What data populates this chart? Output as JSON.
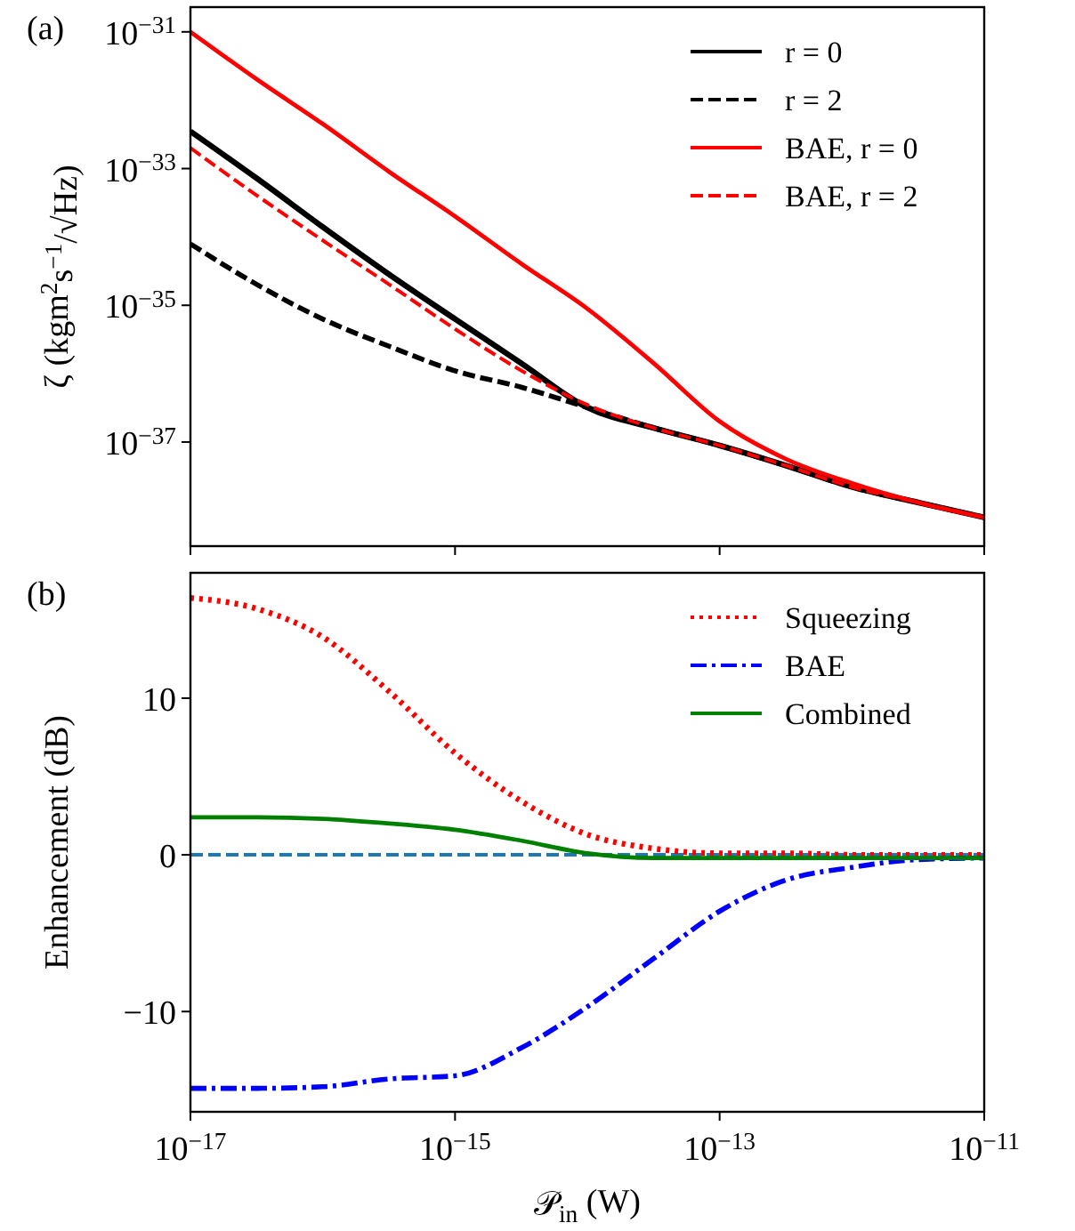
{
  "chart_data": [
    {
      "type": "line",
      "title": "(a)",
      "ylabel": "ζ (kgm$^{2}$s$^{−1}$/√Hz)",
      "log": "xy",
      "grid": false,
      "legend": "top right",
      "tick_labels": "y",
      "x": [
        1e-17,
        3.2e-17,
        1e-16,
        3.2e-16,
        1e-15,
        3.2e-15,
        1e-14,
        3.2e-14,
        1e-13,
        3.2e-13,
        1e-12,
        3.2e-12,
        1e-11
      ],
      "xlim": [
        1e-17,
        1e-11
      ],
      "xticks": [
        1e-17,
        1e-15,
        1e-13,
        1e-11
      ],
      "ylim": [
        3e-39,
        2.3e-31
      ],
      "yticks": [
        {
          "value": 1e-31,
          "label": "10$^{−31}$"
        },
        {
          "value": 1e-33,
          "label": "10$^{−33}$"
        },
        {
          "value": 1e-35,
          "label": "10$^{−35}$"
        },
        {
          "value": 1e-37,
          "label": "10$^{−37}$"
        }
      ],
      "series": [
        {
          "name": "r = 0",
          "color": "#000000",
          "line_style": "solid",
          "values": [
            3.5e-33,
            7.1e-34,
            1.4e-34,
            2.8e-35,
            6.3e-36,
            1.4e-36,
            3.2e-37,
            1.6e-37,
            8.9e-38,
            4.5e-38,
            2.2e-38,
            1.3e-38,
            7.9e-39
          ]
        },
        {
          "name": "r = 2",
          "color": "#000000",
          "line_style": "dashed",
          "values": [
            7.9e-35,
            2e-35,
            6.3e-36,
            2.5e-36,
            1.1e-36,
            6.3e-37,
            3.2e-37,
            1.6e-37,
            8.9e-38,
            4.5e-38,
            2.2e-38,
            1.3e-38,
            7.9e-39
          ]
        },
        {
          "name": "BAE, r = 0",
          "color": "#ff0000",
          "line_style": "solid",
          "values": [
            1e-31,
            2e-32,
            4.5e-33,
            8.9e-34,
            2e-34,
            4e-35,
            8.9e-36,
            1.4e-36,
            2e-37,
            5.6e-38,
            2.5e-38,
            1.3e-38,
            7.9e-39
          ]
        },
        {
          "name": "BAE, r = 2",
          "color": "#ff0000",
          "line_style": "dashed",
          "values": [
            2e-33,
            4e-34,
            8.9e-35,
            2e-35,
            4.5e-36,
            1.1e-36,
            3.5e-37,
            1.6e-37,
            8.9e-38,
            4.5e-38,
            2.2e-38,
            1.3e-38,
            7.9e-39
          ]
        }
      ]
    },
    {
      "type": "line",
      "title": "(b)",
      "xlabel": "𝒫$_{in}$ (W)",
      "ylabel": "Enhancement (dB)",
      "log": "x",
      "grid": false,
      "legend": "top right",
      "x": [
        1e-17,
        3.2e-17,
        1e-16,
        3.2e-16,
        1e-15,
        3.2e-15,
        1e-14,
        3.2e-14,
        1e-13,
        3.2e-13,
        1e-12,
        3.2e-12,
        1e-11
      ],
      "xlim": [
        1e-17,
        1e-11
      ],
      "xticks": [
        {
          "value": 1e-17,
          "label": "10$^{−17}$"
        },
        {
          "value": 1e-15,
          "label": "10$^{−15}$"
        },
        {
          "value": 1e-13,
          "label": "10$^{−13}$"
        },
        {
          "value": 1e-11,
          "label": "10$^{−11}$"
        }
      ],
      "ylim": [
        -16.4,
        18
      ],
      "yticks": [
        {
          "value": -10,
          "label": "−10"
        },
        0,
        10
      ],
      "ref_lines": [
        {
          "axis": "y",
          "value": 0,
          "color": "#1f77b4",
          "line_style": "dashed"
        }
      ],
      "series": [
        {
          "name": "Squeezing",
          "color": "#ff0000",
          "line_style": "dotted",
          "values": [
            16.4,
            15.7,
            13.9,
            10.4,
            6.5,
            3.4,
            1.3,
            0.4,
            0.1,
            0.1,
            0,
            0,
            0
          ]
        },
        {
          "name": "BAE",
          "color": "#0000ff",
          "line_style": "dashdot",
          "values": [
            -14.9,
            -14.9,
            -14.8,
            -14.3,
            -14.1,
            -12.3,
            -9.7,
            -6.6,
            -3.6,
            -1.6,
            -0.8,
            -0.3,
            -0.2
          ]
        },
        {
          "name": "Combined",
          "color": "#008000",
          "line_style": "solid",
          "values": [
            2.4,
            2.4,
            2.3,
            2.0,
            1.6,
            0.9,
            0.1,
            -0.2,
            -0.2,
            -0.2,
            -0.2,
            -0.2,
            -0.2
          ]
        }
      ]
    }
  ]
}
